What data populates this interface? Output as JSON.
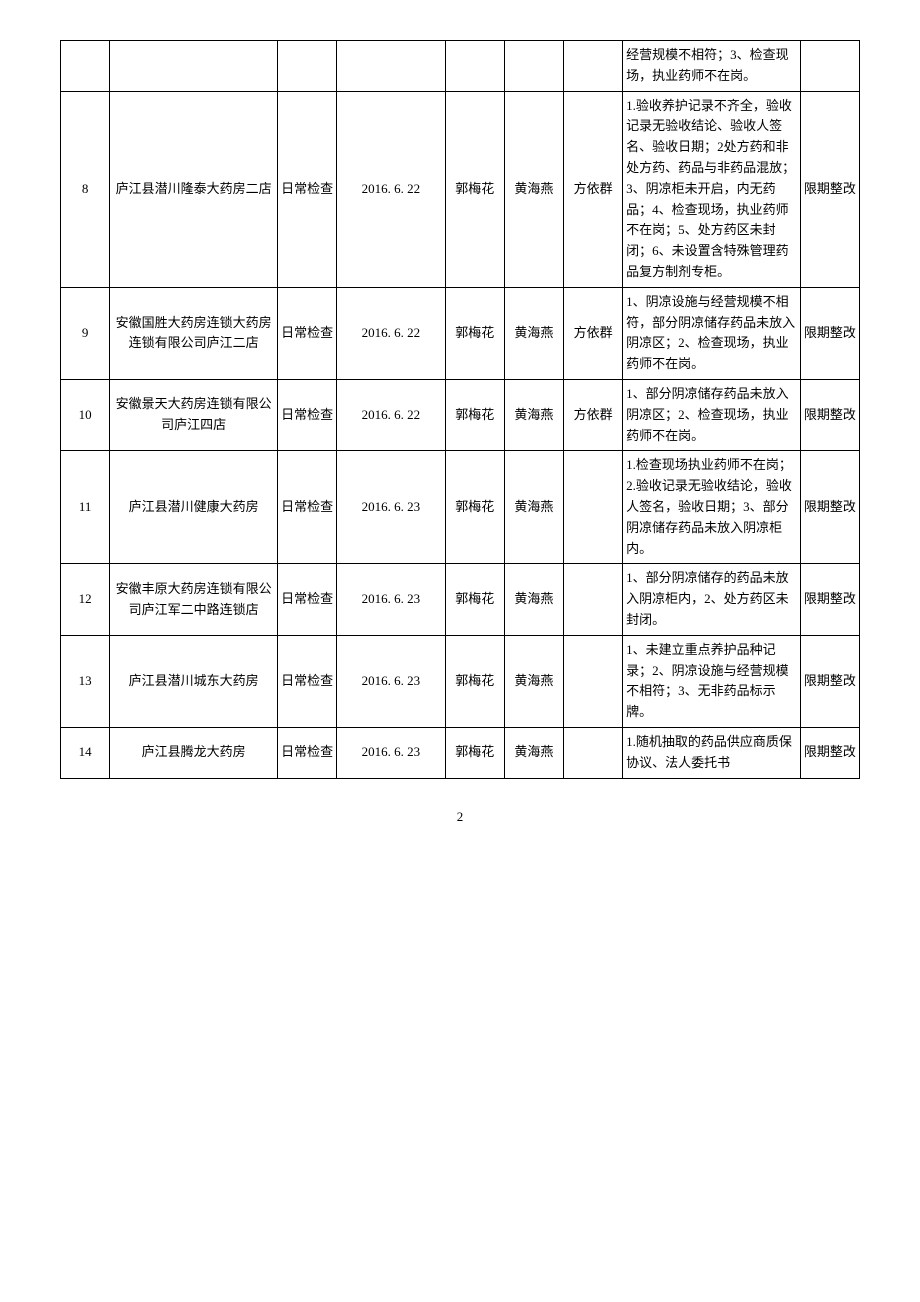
{
  "rows": [
    {
      "num": "",
      "name": "",
      "type": "",
      "date": "",
      "p1": "",
      "p2": "",
      "p3": "",
      "findings": "经营规模不相符；3、检查现场，执业药师不在岗。",
      "result": ""
    },
    {
      "num": "8",
      "name": "庐江县潜川隆泰大药房二店",
      "type": "日常检查",
      "date": "2016. 6. 22",
      "p1": "郭梅花",
      "p2": "黄海燕",
      "p3": "方依群",
      "findings": "1.验收养护记录不齐全，验收记录无验收结论、验收人签名、验收日期；2处方药和非处方药、药品与非药品混放；3、阴凉柜未开启，内无药品；4、检查现场，执业药师不在岗；5、处方药区未封闭；6、未设置含特殊管理药品复方制剂专柜。",
      "result": "限期整改"
    },
    {
      "num": "9",
      "name": "安徽国胜大药房连锁大药房连锁有限公司庐江二店",
      "type": "日常检查",
      "date": "2016. 6. 22",
      "p1": "郭梅花",
      "p2": "黄海燕",
      "p3": "方依群",
      "findings": "1、阴凉设施与经营规模不相符，部分阴凉储存药品未放入阴凉区；2、检查现场，执业药师不在岗。",
      "result": "限期整改"
    },
    {
      "num": "10",
      "name": "安徽景天大药房连锁有限公司庐江四店",
      "type": "日常检查",
      "date": "2016. 6. 22",
      "p1": "郭梅花",
      "p2": "黄海燕",
      "p3": "方依群",
      "findings": "1、部分阴凉储存药品未放入阴凉区；2、检查现场，执业药师不在岗。",
      "result": "限期整改"
    },
    {
      "num": "11",
      "name": "庐江县潜川健康大药房",
      "type": "日常检查",
      "date": "2016. 6. 23",
      "p1": "郭梅花",
      "p2": "黄海燕",
      "p3": "",
      "findings": "1.检查现场执业药师不在岗；2.验收记录无验收结论，验收人签名，验收日期；3、部分阴凉储存药品未放入阴凉柜内。",
      "result": "限期整改"
    },
    {
      "num": "12",
      "name": "安徽丰原大药房连锁有限公司庐江军二中路连锁店",
      "type": "日常检查",
      "date": "2016. 6. 23",
      "p1": "郭梅花",
      "p2": "黄海燕",
      "p3": "",
      "findings": "1、部分阴凉储存的药品未放入阴凉柜内，2、处方药区未封闭。",
      "result": "限期整改"
    },
    {
      "num": "13",
      "name": "庐江县潜川城东大药房",
      "type": "日常检查",
      "date": "2016. 6. 23",
      "p1": "郭梅花",
      "p2": "黄海燕",
      "p3": "",
      "findings": "1、未建立重点养护品种记录；2、阴凉设施与经营规模不相符；3、无非药品标示牌。",
      "result": "限期整改"
    },
    {
      "num": "14",
      "name": "庐江县腾龙大药房",
      "type": "日常检查",
      "date": "2016. 6. 23",
      "p1": "郭梅花",
      "p2": "黄海燕",
      "p3": "",
      "findings": "1.随机抽取的药品供应商质保协议、法人委托书",
      "result": "限期整改"
    }
  ],
  "pageNumber": "2"
}
